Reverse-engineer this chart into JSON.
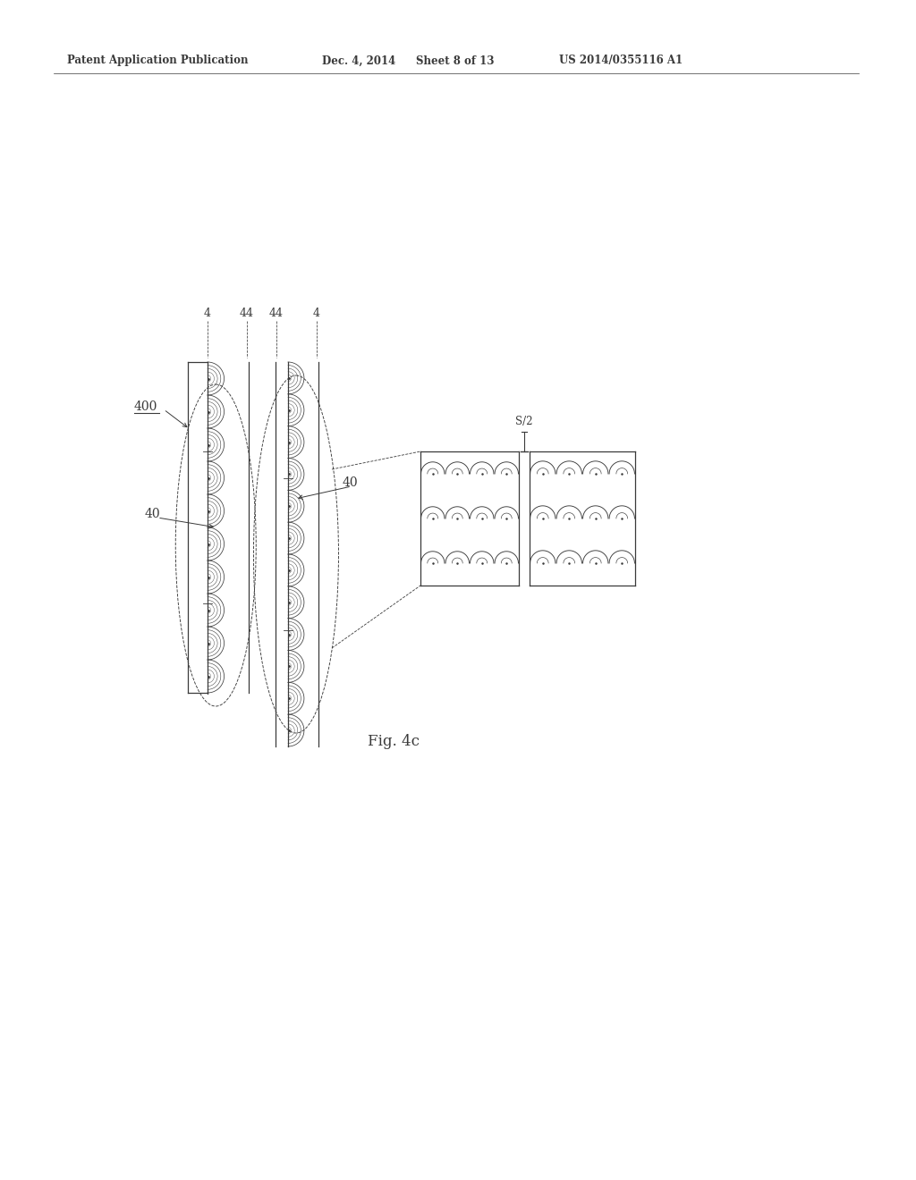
{
  "bg_color": "#ffffff",
  "header_text": "Patent Application Publication",
  "header_date": "Dec. 4, 2014",
  "header_sheet": "Sheet 8 of 13",
  "header_patent": "US 2014/0355116 A1",
  "fig_label": "Fig. 4c",
  "label_400": "400",
  "label_40": "40",
  "label_4": "4",
  "label_44": "44",
  "label_S2": "S/2",
  "color": "#3a3a3a"
}
